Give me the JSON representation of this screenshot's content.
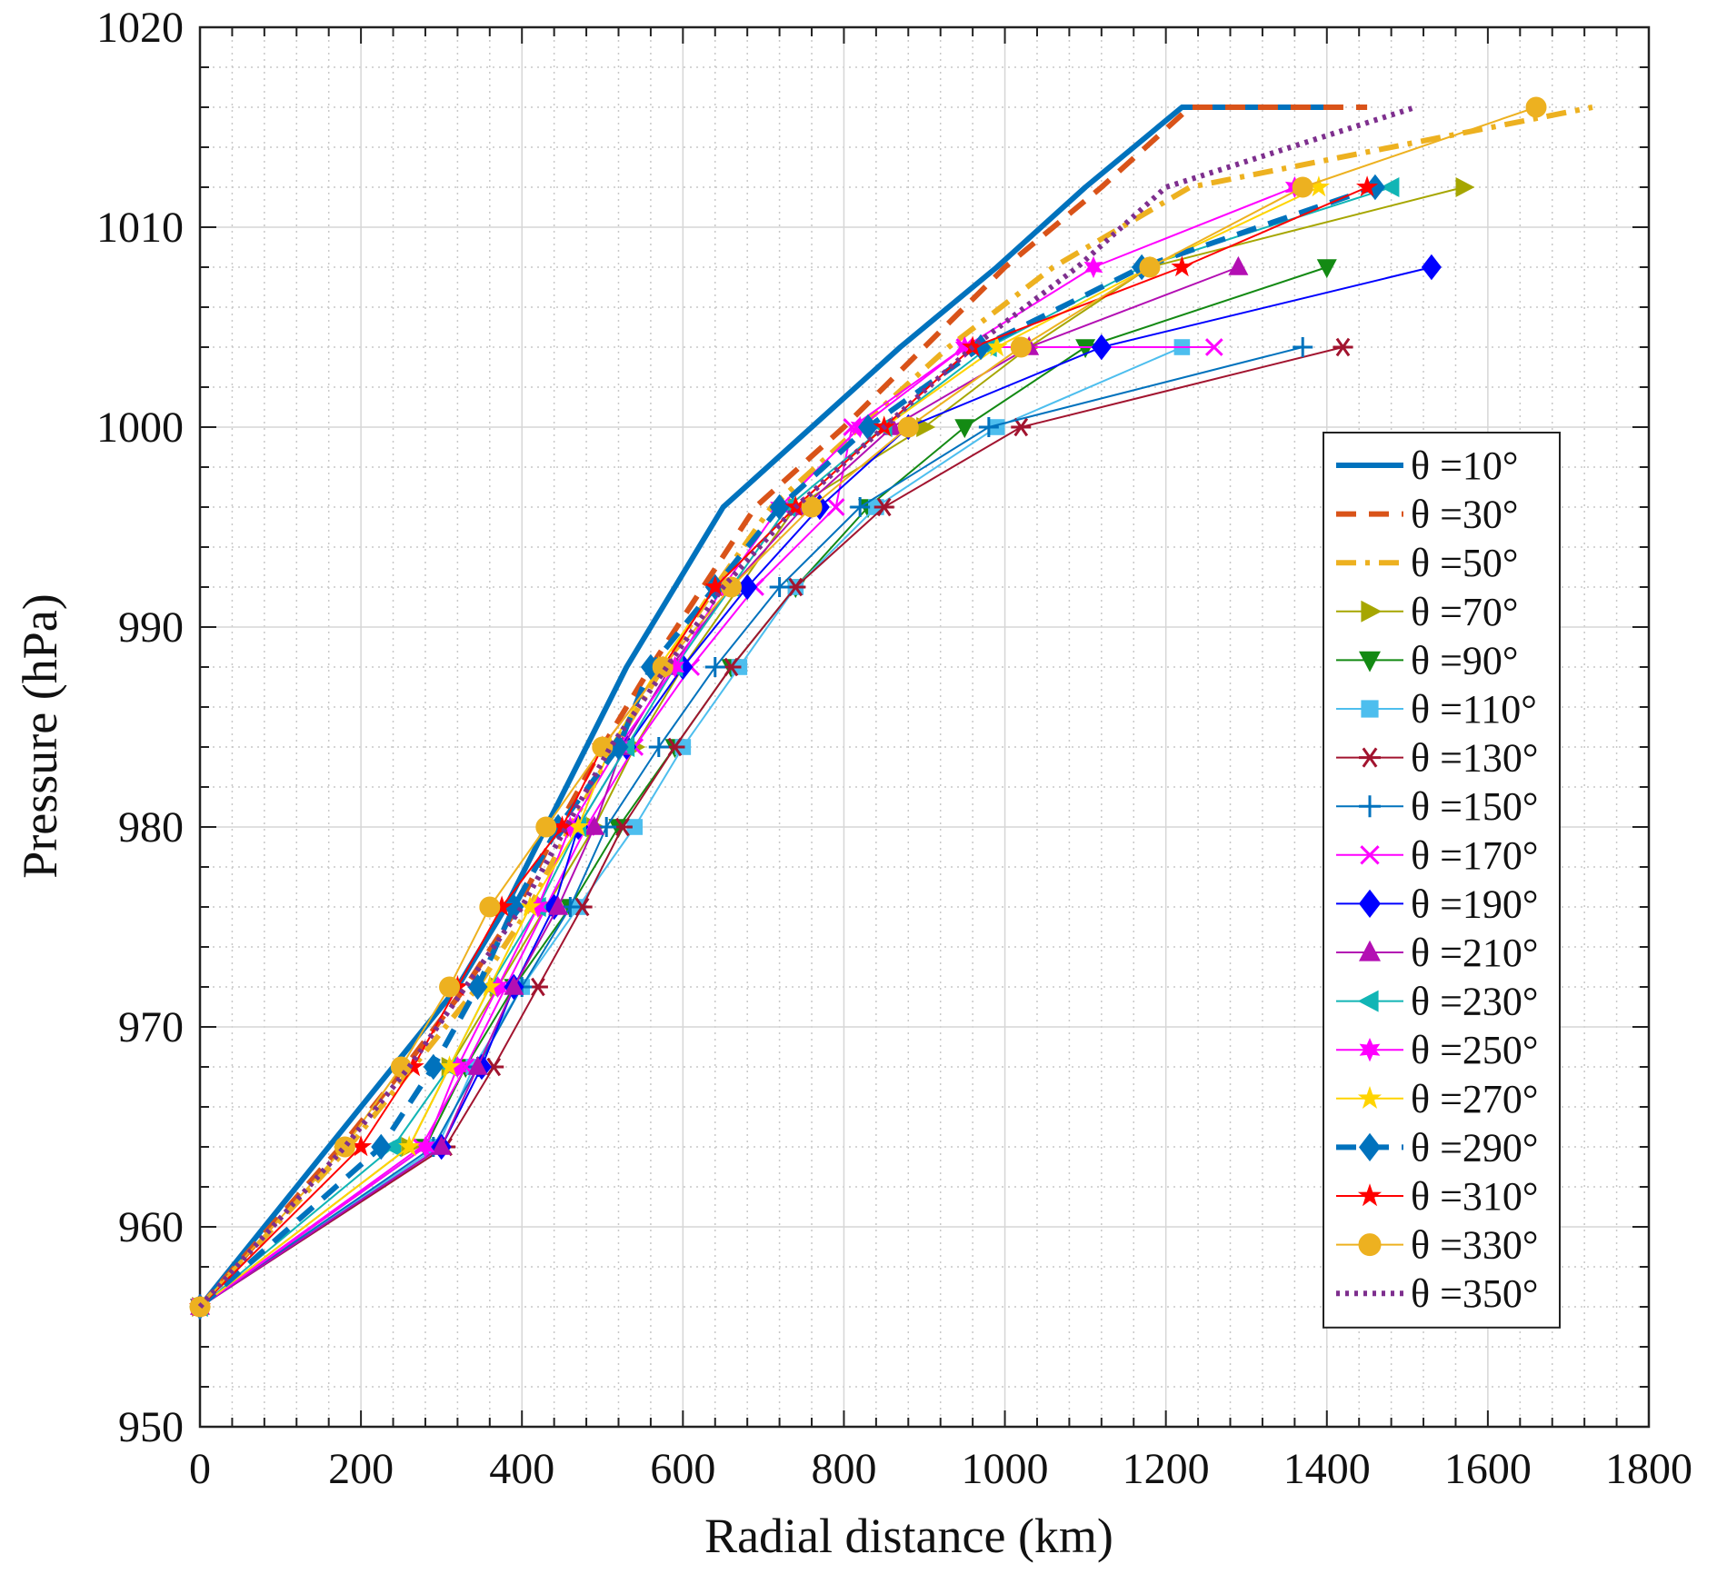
{
  "chart_data": {
    "type": "line",
    "title": "",
    "xlabel": "Radial distance (km)",
    "ylabel": "Pressure (hPa)",
    "xlim": [
      0,
      1800
    ],
    "ylim": [
      950,
      1020
    ],
    "xticks": [
      "0",
      "200",
      "400",
      "600",
      "800",
      "1000",
      "1200",
      "1400",
      "1600",
      "1800"
    ],
    "yticks": [
      "950",
      "960",
      "970",
      "980",
      "990",
      "1000",
      "1010",
      "1020"
    ],
    "grid": true,
    "legend_position": "right-center",
    "pressure_levels": [
      956,
      964,
      968,
      972,
      976,
      980,
      984,
      988,
      992,
      996,
      1000,
      1004,
      1008,
      1012,
      1016
    ],
    "series": [
      {
        "name": "θ =10°",
        "color": "#0072BD",
        "style": "solid",
        "marker": "none",
        "x": [
          0,
          160,
          240,
          320,
          380,
          430,
          480,
          530,
          590,
          650,
          760,
          870,
          990,
          1100,
          1220,
          1420
        ],
        "y": [
          956,
          964,
          968,
          972,
          976,
          980,
          984,
          988,
          992,
          996,
          1000,
          1004,
          1008,
          1012,
          1016,
          1016
        ]
      },
      {
        "name": "θ =30°",
        "color": "#D95319",
        "style": "dashed",
        "marker": "none",
        "x": [
          0,
          175,
          255,
          330,
          395,
          445,
          500,
          560,
          625,
          690,
          800,
          900,
          1000,
          1120,
          1230,
          1450
        ],
        "y": [
          956,
          964,
          968,
          972,
          976,
          980,
          984,
          988,
          992,
          996,
          1000,
          1004,
          1008,
          1012,
          1016,
          1016
        ]
      },
      {
        "name": "θ =50°",
        "color": "#EDB120",
        "style": "dashdot",
        "marker": "none",
        "x": [
          0,
          185,
          265,
          345,
          410,
          460,
          515,
          575,
          640,
          710,
          820,
          930,
          1060,
          1230,
          1730
        ],
        "y": [
          956,
          964,
          968,
          972,
          976,
          980,
          984,
          988,
          992,
          996,
          1000,
          1004,
          1008,
          1012,
          1016
        ]
      },
      {
        "name": "θ =70°",
        "color": "#A6A600",
        "style": "solid",
        "marker": "triangle-right",
        "x": [
          0,
          260,
          310,
          370,
          430,
          490,
          540,
          600,
          670,
          740,
          900,
          1030,
          1180,
          1570
        ],
        "y": [
          956,
          964,
          968,
          972,
          976,
          980,
          984,
          988,
          992,
          996,
          1000,
          1004,
          1008,
          1012
        ]
      },
      {
        "name": "θ =90°",
        "color": "#138A13",
        "style": "solid",
        "marker": "triangle-down",
        "x": [
          0,
          280,
          330,
          390,
          460,
          520,
          590,
          660,
          740,
          830,
          950,
          1100,
          1400
        ],
        "y": [
          956,
          964,
          968,
          972,
          976,
          980,
          984,
          988,
          992,
          996,
          1000,
          1004,
          1008
        ]
      },
      {
        "name": "θ =110°",
        "color": "#4DBEEE",
        "style": "solid",
        "marker": "square",
        "x": [
          0,
          295,
          340,
          400,
          470,
          540,
          600,
          670,
          740,
          840,
          990,
          1220
        ],
        "y": [
          956,
          964,
          968,
          972,
          976,
          980,
          984,
          988,
          992,
          996,
          1000,
          1004
        ]
      },
      {
        "name": "θ =130°",
        "color": "#A2142F",
        "style": "solid",
        "marker": "asterisk",
        "x": [
          0,
          305,
          365,
          420,
          475,
          525,
          590,
          660,
          740,
          850,
          1020,
          1420
        ],
        "y": [
          956,
          964,
          968,
          972,
          976,
          980,
          984,
          988,
          992,
          996,
          1000,
          1004
        ]
      },
      {
        "name": "θ =150°",
        "color": "#0072BD",
        "style": "solid",
        "marker": "plus",
        "x": [
          0,
          290,
          345,
          400,
          460,
          505,
          570,
          640,
          720,
          820,
          980,
          1370
        ],
        "y": [
          956,
          964,
          968,
          972,
          976,
          980,
          984,
          988,
          992,
          996,
          1000,
          1004
        ]
      },
      {
        "name": "θ =170°",
        "color": "#FF00FF",
        "style": "solid",
        "marker": "x",
        "x": [
          0,
          275,
          330,
          380,
          430,
          480,
          540,
          610,
          690,
          790,
          810,
          950,
          1260
        ],
        "y": [
          956,
          964,
          968,
          972,
          976,
          980,
          984,
          988,
          992,
          996,
          1000,
          1004,
          1004
        ]
      },
      {
        "name": "θ =190°",
        "color": "#0000FF",
        "style": "solid",
        "marker": "diamond",
        "x": [
          0,
          300,
          350,
          390,
          440,
          470,
          530,
          600,
          680,
          770,
          880,
          1120,
          1530
        ],
        "y": [
          956,
          964,
          968,
          972,
          976,
          980,
          984,
          988,
          992,
          996,
          1000,
          1004,
          1008
        ]
      },
      {
        "name": "θ =210°",
        "color": "#B30FB3",
        "style": "solid",
        "marker": "triangle-up",
        "x": [
          0,
          300,
          345,
          390,
          445,
          490,
          525,
          585,
          660,
          750,
          860,
          1030,
          1290
        ],
        "y": [
          956,
          964,
          968,
          972,
          976,
          980,
          984,
          988,
          992,
          996,
          1000,
          1004,
          1008
        ]
      },
      {
        "name": "θ =230°",
        "color": "#11B5B5",
        "style": "solid",
        "marker": "triangle-left",
        "x": [
          0,
          240,
          310,
          360,
          420,
          470,
          530,
          590,
          660,
          730,
          850,
          980,
          1170,
          1480
        ],
        "y": [
          956,
          964,
          968,
          972,
          976,
          980,
          984,
          988,
          992,
          996,
          1000,
          1004,
          1008,
          1012
        ]
      },
      {
        "name": "θ =250°",
        "color": "#FF00FF",
        "style": "solid",
        "marker": "hexagram",
        "x": [
          0,
          280,
          320,
          370,
          420,
          460,
          520,
          590,
          650,
          720,
          820,
          950,
          1110,
          1360
        ],
        "y": [
          956,
          964,
          968,
          972,
          976,
          980,
          984,
          988,
          992,
          996,
          1000,
          1004,
          1008,
          1012
        ]
      },
      {
        "name": "θ =270°",
        "color": "#FFD400",
        "style": "solid",
        "marker": "pentagram",
        "x": [
          0,
          260,
          310,
          360,
          410,
          470,
          510,
          570,
          640,
          740,
          850,
          990,
          1180,
          1390
        ],
        "y": [
          956,
          964,
          968,
          972,
          976,
          980,
          984,
          988,
          992,
          996,
          1000,
          1004,
          1008,
          1012
        ]
      },
      {
        "name": "θ =290°",
        "color": "#0072BD",
        "style": "dashed",
        "marker": "diamond",
        "x": [
          0,
          225,
          290,
          345,
          390,
          445,
          520,
          560,
          640,
          720,
          830,
          970,
          1170,
          1460
        ],
        "y": [
          956,
          964,
          968,
          972,
          976,
          980,
          984,
          988,
          992,
          996,
          1000,
          1004,
          1008,
          1012
        ]
      },
      {
        "name": "θ =310°",
        "color": "#FF0000",
        "style": "solid",
        "marker": "pentagram",
        "x": [
          0,
          200,
          265,
          320,
          375,
          450,
          500,
          575,
          640,
          740,
          850,
          960,
          1220,
          1450
        ],
        "y": [
          956,
          964,
          968,
          972,
          976,
          980,
          984,
          988,
          992,
          996,
          1000,
          1004,
          1008,
          1012
        ]
      },
      {
        "name": "θ =330°",
        "color": "#EDB120",
        "style": "solid",
        "marker": "circle",
        "x": [
          0,
          180,
          250,
          310,
          360,
          430,
          500,
          575,
          660,
          760,
          880,
          1020,
          1180,
          1370,
          1660
        ],
        "y": [
          956,
          964,
          968,
          972,
          976,
          980,
          984,
          988,
          992,
          996,
          1000,
          1004,
          1008,
          1012,
          1016
        ]
      },
      {
        "name": "θ =350°",
        "color": "#7E2F8E",
        "style": "dotted",
        "marker": "none",
        "x": [
          0,
          180,
          260,
          330,
          400,
          455,
          510,
          580,
          650,
          740,
          850,
          960,
          1090,
          1200,
          1510
        ],
        "y": [
          956,
          964,
          968,
          972,
          976,
          980,
          984,
          988,
          992,
          996,
          1000,
          1004,
          1008,
          1012,
          1016
        ]
      }
    ]
  }
}
